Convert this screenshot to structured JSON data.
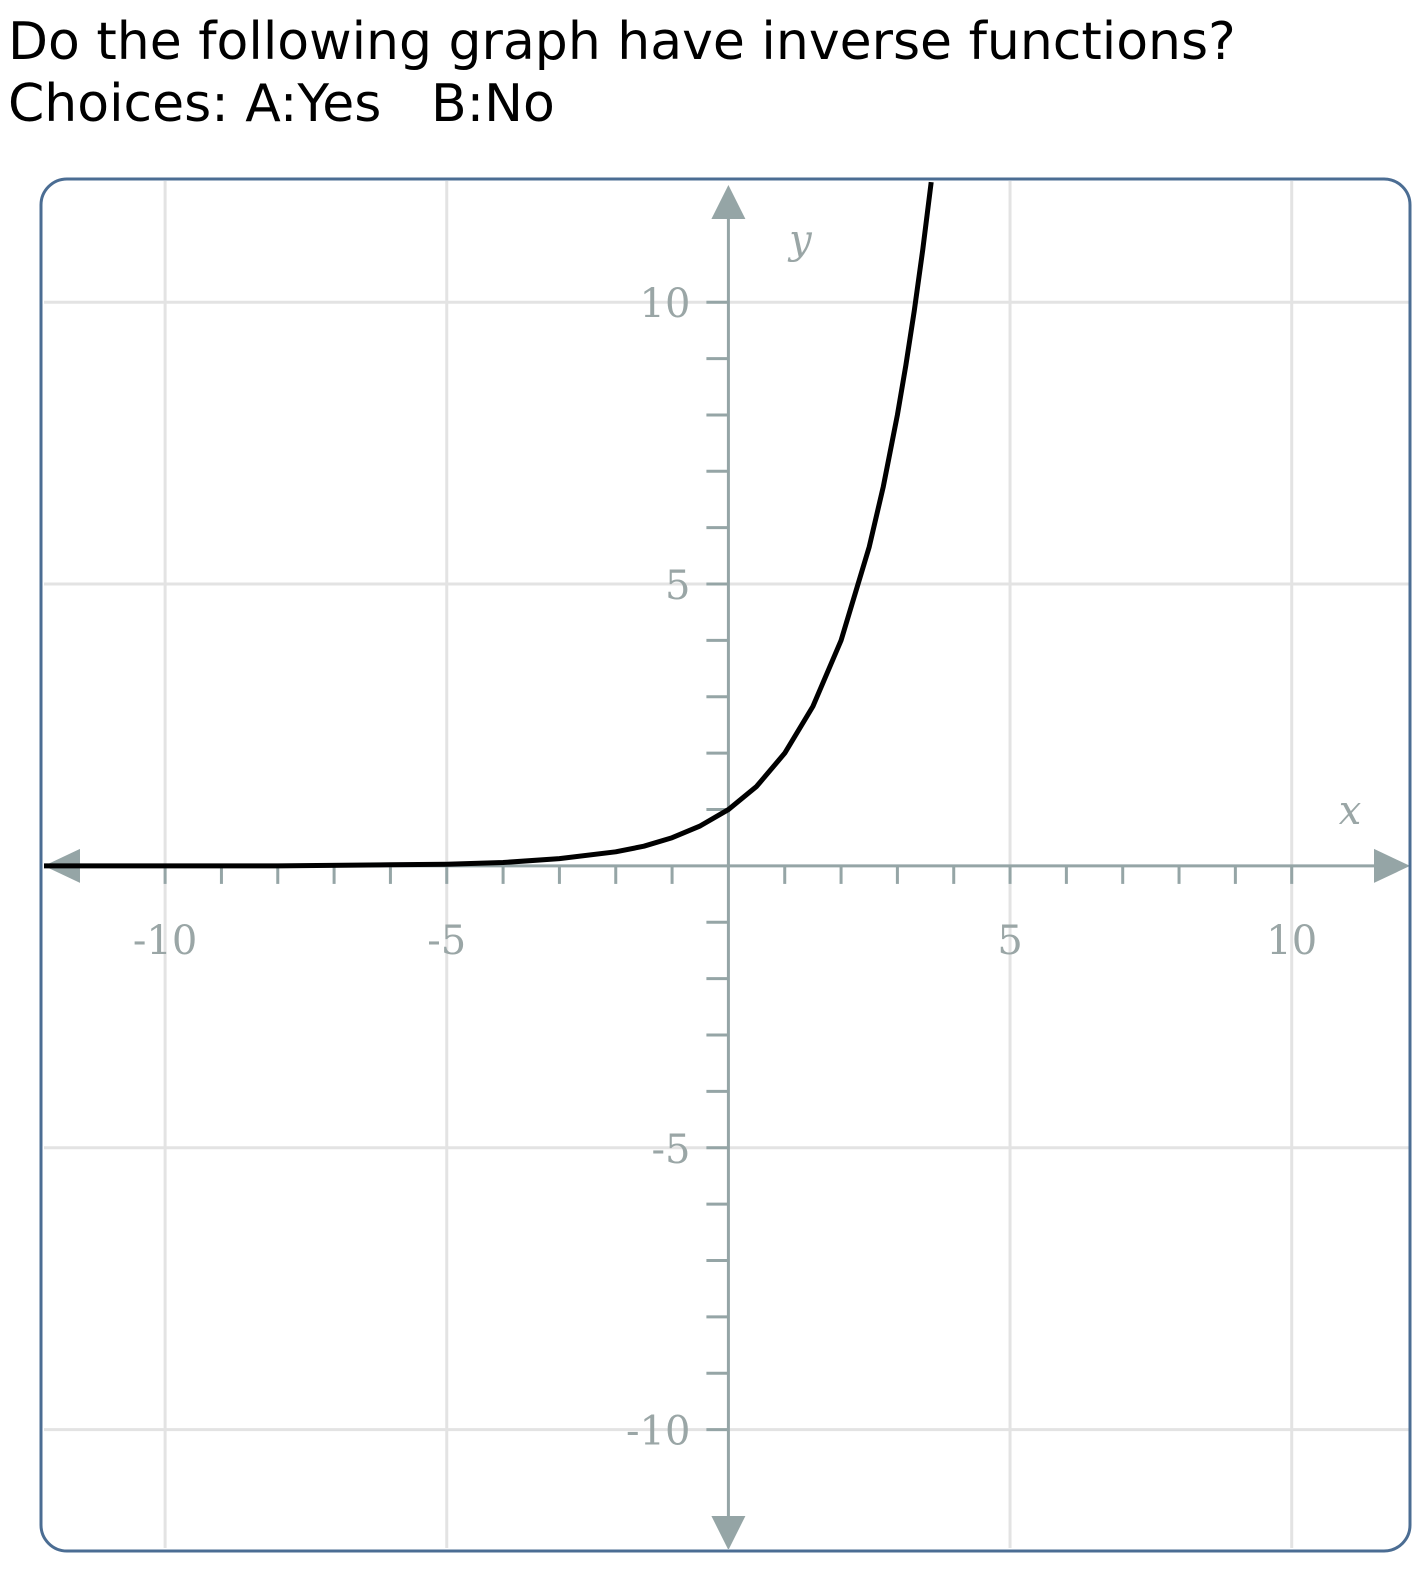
{
  "question": "Do the following graph have inverse functions?",
  "choices": "Choices: A:Yes   B:No",
  "chart_data": {
    "type": "line",
    "x_label": "x",
    "y_label": "y",
    "x": [
      -12.15,
      -10,
      -8,
      -6,
      -5,
      -4,
      -3,
      -2,
      -1.5,
      -1,
      -0.5,
      0,
      0.5,
      1,
      1.5,
      2,
      2.5,
      2.75,
      3,
      3.15,
      3.3,
      3.45,
      3.6
    ],
    "series": [
      {
        "color": "#000000",
        "values": [
          0,
          0,
          0,
          0.02,
          0.03,
          0.06,
          0.13,
          0.25,
          0.35,
          0.5,
          0.71,
          1,
          1.41,
          2,
          2.83,
          4,
          5.66,
          6.73,
          8,
          8.88,
          9.85,
          10.93,
          12.13
        ]
      }
    ],
    "xlim": [
      -12.15,
      12.1
    ],
    "ylim": [
      -12.1,
      12.15
    ],
    "xticks": [
      -10,
      -5,
      5,
      10
    ],
    "yticks": [
      -10,
      -5,
      5,
      10
    ],
    "xticks_minor": [
      -10,
      -9,
      -8,
      -7,
      -6,
      -5,
      -4,
      -3,
      -2,
      -1,
      1,
      2,
      3,
      4,
      5,
      6,
      7,
      8,
      9,
      10
    ],
    "yticks_minor": [
      -10,
      -9,
      -8,
      -7,
      -6,
      -5,
      -4,
      -3,
      -2,
      -1,
      1,
      2,
      3,
      4,
      5,
      6,
      7,
      8,
      9,
      10
    ],
    "grid": true
  }
}
